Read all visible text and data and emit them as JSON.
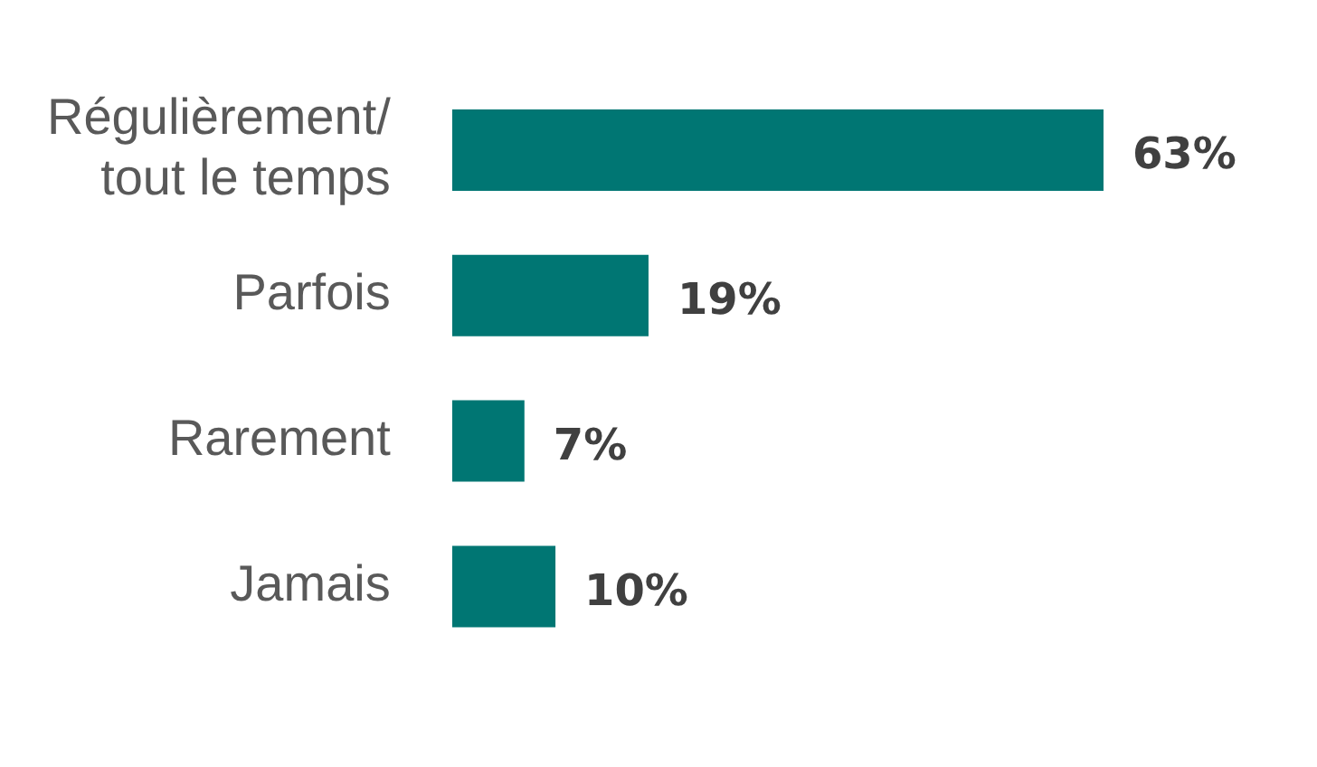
{
  "chart_data": {
    "type": "bar",
    "orientation": "horizontal",
    "categories": [
      "Régulièrement/ tout le temps",
      "Parfois",
      "Rarement",
      "Jamais"
    ],
    "values": [
      63,
      19,
      7,
      10
    ],
    "value_labels": [
      "63%",
      "19%",
      "7%",
      "10%"
    ],
    "color": "#007673",
    "tick_labels": "y"
  }
}
